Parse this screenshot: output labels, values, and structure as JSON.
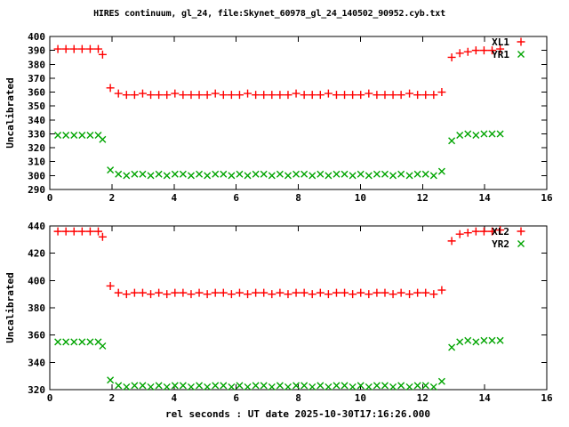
{
  "title": "HIRES continuum, gl_24, file:Skynet_60978_gl_24_140502_90952.cyb.txt",
  "colors": {
    "background": "#ffffff",
    "frame": "#000000",
    "series_red": "#ff0000",
    "series_green": "#00a400"
  },
  "chart_data": [
    {
      "type": "scatter",
      "title": "",
      "ylabel": "Uncalibrated",
      "xlabel": "",
      "xlim": [
        0,
        16
      ],
      "ylim": [
        290,
        400
      ],
      "xticks": [
        0,
        2,
        4,
        6,
        8,
        10,
        12,
        14,
        16
      ],
      "yticks": [
        290,
        300,
        310,
        320,
        330,
        340,
        350,
        360,
        370,
        380,
        390,
        400
      ],
      "grid": false,
      "legend_position": "top-right",
      "x": [
        0.26,
        0.52,
        0.78,
        1.04,
        1.3,
        1.56,
        1.7,
        1.95,
        2.21,
        2.47,
        2.73,
        2.99,
        3.25,
        3.51,
        3.77,
        4.03,
        4.29,
        4.55,
        4.81,
        5.07,
        5.33,
        5.59,
        5.85,
        6.11,
        6.37,
        6.63,
        6.89,
        7.15,
        7.41,
        7.67,
        7.93,
        8.19,
        8.45,
        8.71,
        8.97,
        9.23,
        9.49,
        9.75,
        10.01,
        10.27,
        10.53,
        10.79,
        11.05,
        11.31,
        11.58,
        11.84,
        12.1,
        12.36,
        12.62,
        12.94,
        13.2,
        13.46,
        13.72,
        13.98,
        14.24,
        14.5
      ],
      "series": [
        {
          "name": "XL1",
          "marker": "plus",
          "color": "#ff0000",
          "values": [
            391,
            391,
            391,
            391,
            391,
            391,
            387,
            363,
            359,
            358,
            358,
            359,
            358,
            358,
            358,
            359,
            358,
            358,
            358,
            358,
            359,
            358,
            358,
            358,
            359,
            358,
            358,
            358,
            358,
            358,
            359,
            358,
            358,
            358,
            359,
            358,
            358,
            358,
            358,
            359,
            358,
            358,
            358,
            358,
            359,
            358,
            358,
            358,
            360,
            385,
            388,
            389,
            390,
            390,
            390,
            391
          ]
        },
        {
          "name": "YR1",
          "marker": "cross",
          "color": "#00a400",
          "values": [
            329,
            329,
            329,
            329,
            329,
            329,
            326,
            304,
            301,
            300,
            301,
            301,
            300,
            301,
            300,
            301,
            301,
            300,
            301,
            300,
            301,
            301,
            300,
            301,
            300,
            301,
            301,
            300,
            301,
            300,
            301,
            301,
            300,
            301,
            300,
            301,
            301,
            300,
            301,
            300,
            301,
            301,
            300,
            301,
            300,
            301,
            301,
            300,
            303,
            325,
            329,
            330,
            329,
            330,
            330,
            330
          ]
        }
      ]
    },
    {
      "type": "scatter",
      "title": "",
      "ylabel": "Uncalibrated",
      "xlabel": "rel seconds : UT date 2025-10-30T17:16:26.000",
      "xlim": [
        0,
        16
      ],
      "ylim": [
        320,
        440
      ],
      "xticks": [
        0,
        2,
        4,
        6,
        8,
        10,
        12,
        14,
        16
      ],
      "yticks": [
        320,
        340,
        360,
        380,
        400,
        420,
        440
      ],
      "grid": false,
      "legend_position": "top-right",
      "x": [
        0.26,
        0.52,
        0.78,
        1.04,
        1.3,
        1.56,
        1.7,
        1.95,
        2.21,
        2.47,
        2.73,
        2.99,
        3.25,
        3.51,
        3.77,
        4.03,
        4.29,
        4.55,
        4.81,
        5.07,
        5.33,
        5.59,
        5.85,
        6.11,
        6.37,
        6.63,
        6.89,
        7.15,
        7.41,
        7.67,
        7.93,
        8.19,
        8.45,
        8.71,
        8.97,
        9.23,
        9.49,
        9.75,
        10.01,
        10.27,
        10.53,
        10.79,
        11.05,
        11.31,
        11.58,
        11.84,
        12.1,
        12.36,
        12.62,
        12.94,
        13.2,
        13.46,
        13.72,
        13.98,
        14.24,
        14.5
      ],
      "series": [
        {
          "name": "XL2",
          "marker": "plus",
          "color": "#ff0000",
          "values": [
            436,
            436,
            436,
            436,
            436,
            436,
            432,
            396,
            391,
            390,
            391,
            391,
            390,
            391,
            390,
            391,
            391,
            390,
            391,
            390,
            391,
            391,
            390,
            391,
            390,
            391,
            391,
            390,
            391,
            390,
            391,
            391,
            390,
            391,
            390,
            391,
            391,
            390,
            391,
            390,
            391,
            391,
            390,
            391,
            390,
            391,
            391,
            390,
            393,
            429,
            434,
            435,
            436,
            436,
            436,
            437
          ]
        },
        {
          "name": "YR2",
          "marker": "cross",
          "color": "#00a400",
          "values": [
            355,
            355,
            355,
            355,
            355,
            355,
            352,
            327,
            323,
            322,
            323,
            323,
            322,
            323,
            322,
            323,
            323,
            322,
            323,
            322,
            323,
            323,
            322,
            323,
            322,
            323,
            323,
            322,
            323,
            322,
            323,
            323,
            322,
            323,
            322,
            323,
            323,
            322,
            323,
            322,
            323,
            323,
            322,
            323,
            322,
            323,
            323,
            322,
            326,
            351,
            355,
            356,
            355,
            356,
            356,
            356
          ]
        }
      ]
    }
  ]
}
